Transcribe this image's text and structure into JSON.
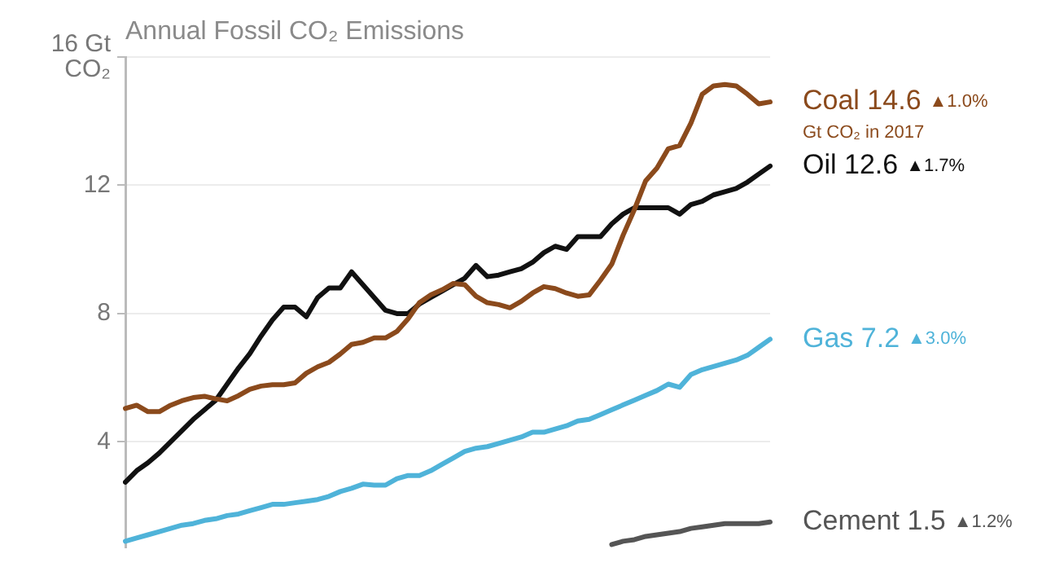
{
  "chart_data": {
    "type": "line",
    "title": "Annual Fossil CO₂ Emissions",
    "categories": [
      null,
      null,
      null,
      null,
      null,
      null,
      null,
      null,
      null,
      null,
      null,
      null,
      null,
      null,
      null,
      null,
      null,
      null,
      null,
      null,
      null,
      null,
      null,
      null,
      null,
      null,
      null,
      null,
      null,
      null,
      null,
      null,
      null,
      null,
      null,
      null,
      null,
      null,
      null,
      null,
      null,
      null,
      null,
      null,
      null,
      null,
      null,
      null,
      null,
      null,
      null,
      null,
      null,
      null,
      null,
      null,
      null,
      null
    ],
    "series": [
      {
        "name": "Coal",
        "color": "#8b4a1c",
        "values": [
          5.04,
          5.14,
          4.94,
          4.94,
          5.14,
          5.28,
          5.38,
          5.42,
          5.34,
          5.28,
          5.44,
          5.64,
          5.74,
          5.78,
          5.78,
          5.84,
          6.14,
          6.34,
          6.48,
          6.74,
          7.04,
          7.1,
          7.24,
          7.24,
          7.44,
          7.84,
          8.34,
          8.58,
          8.74,
          8.94,
          8.9,
          8.54,
          8.34,
          8.28,
          8.18,
          8.38,
          8.64,
          8.84,
          8.78,
          8.64,
          8.54,
          8.58,
          9.04,
          9.54,
          10.44,
          11.24,
          12.14,
          12.54,
          13.14,
          13.24,
          13.94,
          14.84,
          15.1,
          15.14,
          15.1,
          14.84,
          14.54,
          14.6
        ],
        "value_labels": [
          null,
          null,
          null,
          null,
          null,
          null,
          null,
          null,
          null,
          null,
          null,
          null,
          null,
          null,
          null,
          null,
          null,
          null,
          null,
          null,
          null,
          null,
          null,
          null,
          null,
          null,
          null,
          null,
          null,
          null,
          null,
          null,
          null,
          null,
          null,
          null,
          null,
          null,
          null,
          null,
          null,
          null,
          null,
          null,
          null,
          null,
          null,
          null,
          null,
          null,
          null,
          null,
          null,
          null,
          null,
          null,
          null,
          "14.6"
        ]
      },
      {
        "name": "Oil",
        "color": "#111111",
        "values": [
          2.74,
          3.1,
          3.35,
          3.65,
          4.0,
          4.35,
          4.7,
          5.0,
          5.3,
          5.8,
          6.3,
          6.75,
          7.3,
          7.8,
          8.2,
          8.2,
          7.9,
          8.5,
          8.8,
          8.8,
          9.3,
          8.9,
          8.5,
          8.1,
          8.0,
          8.0,
          8.3,
          8.5,
          8.7,
          8.9,
          9.1,
          9.5,
          9.15,
          9.2,
          9.3,
          9.4,
          9.6,
          9.9,
          10.1,
          10.0,
          10.4,
          10.4,
          10.4,
          10.8,
          11.1,
          11.3,
          11.3,
          11.3,
          11.3,
          11.1,
          11.4,
          11.5,
          11.7,
          11.8,
          11.9,
          12.1,
          12.35,
          12.6
        ],
        "value_labels": [
          null,
          null,
          null,
          null,
          null,
          null,
          null,
          null,
          null,
          null,
          null,
          null,
          null,
          null,
          null,
          null,
          null,
          null,
          null,
          null,
          null,
          null,
          null,
          null,
          null,
          null,
          null,
          null,
          null,
          null,
          null,
          null,
          null,
          null,
          null,
          null,
          null,
          null,
          null,
          null,
          null,
          null,
          null,
          null,
          null,
          null,
          null,
          null,
          null,
          null,
          null,
          null,
          null,
          null,
          null,
          null,
          null,
          "12.6"
        ]
      },
      {
        "name": "Gas",
        "color": "#4fb3d9",
        "values": [
          0.9,
          1.0,
          1.1,
          1.2,
          1.3,
          1.4,
          1.45,
          1.55,
          1.6,
          1.7,
          1.75,
          1.85,
          1.95,
          2.05,
          2.05,
          2.1,
          2.15,
          2.2,
          2.3,
          2.45,
          2.55,
          2.68,
          2.65,
          2.65,
          2.85,
          2.95,
          2.95,
          3.1,
          3.3,
          3.5,
          3.7,
          3.8,
          3.85,
          3.95,
          4.05,
          4.15,
          4.3,
          4.3,
          4.4,
          4.5,
          4.65,
          4.7,
          4.85,
          5.0,
          5.15,
          5.3,
          5.45,
          5.6,
          5.8,
          5.7,
          6.1,
          6.25,
          6.35,
          6.45,
          6.55,
          6.7,
          6.95,
          7.2
        ],
        "value_labels": [
          null,
          null,
          null,
          null,
          null,
          null,
          null,
          null,
          null,
          null,
          null,
          null,
          null,
          null,
          null,
          null,
          null,
          null,
          null,
          null,
          null,
          null,
          null,
          null,
          null,
          null,
          null,
          null,
          null,
          null,
          null,
          null,
          null,
          null,
          null,
          null,
          null,
          null,
          null,
          null,
          null,
          null,
          null,
          null,
          null,
          null,
          null,
          null,
          null,
          null,
          null,
          null,
          null,
          null,
          null,
          null,
          null,
          "7.2"
        ]
      },
      {
        "name": "Cement",
        "color": "#555555",
        "values": [
          null,
          null,
          null,
          null,
          null,
          null,
          null,
          null,
          null,
          null,
          null,
          null,
          null,
          null,
          null,
          null,
          null,
          null,
          null,
          null,
          null,
          null,
          null,
          null,
          null,
          null,
          null,
          null,
          null,
          null,
          null,
          null,
          null,
          null,
          null,
          null,
          null,
          null,
          null,
          null,
          null,
          null,
          null,
          0.8,
          0.9,
          0.95,
          1.05,
          1.1,
          1.15,
          1.2,
          1.3,
          1.35,
          1.4,
          1.45,
          1.45,
          1.45,
          1.45,
          1.5
        ],
        "value_labels": [
          null,
          null,
          null,
          null,
          null,
          null,
          null,
          null,
          null,
          null,
          null,
          null,
          null,
          null,
          null,
          null,
          null,
          null,
          null,
          null,
          null,
          null,
          null,
          null,
          null,
          null,
          null,
          null,
          null,
          null,
          null,
          null,
          null,
          null,
          null,
          null,
          null,
          null,
          null,
          null,
          null,
          null,
          null,
          null,
          null,
          null,
          null,
          null,
          null,
          null,
          null,
          null,
          null,
          null,
          null,
          null,
          null,
          "1.5"
        ]
      }
    ],
    "ylim": [
      0.7,
      16
    ],
    "yticks": [
      4,
      8,
      12,
      {
        "value": 16,
        "label": "16 Gt\nCO₂"
      }
    ],
    "grid": "y",
    "tick_labels": "y",
    "annotations": [
      "▲1.0%",
      "▲1.7%",
      "▲3.0%",
      "▲1.2%",
      "Gt CO₂ in 2017"
    ]
  }
}
